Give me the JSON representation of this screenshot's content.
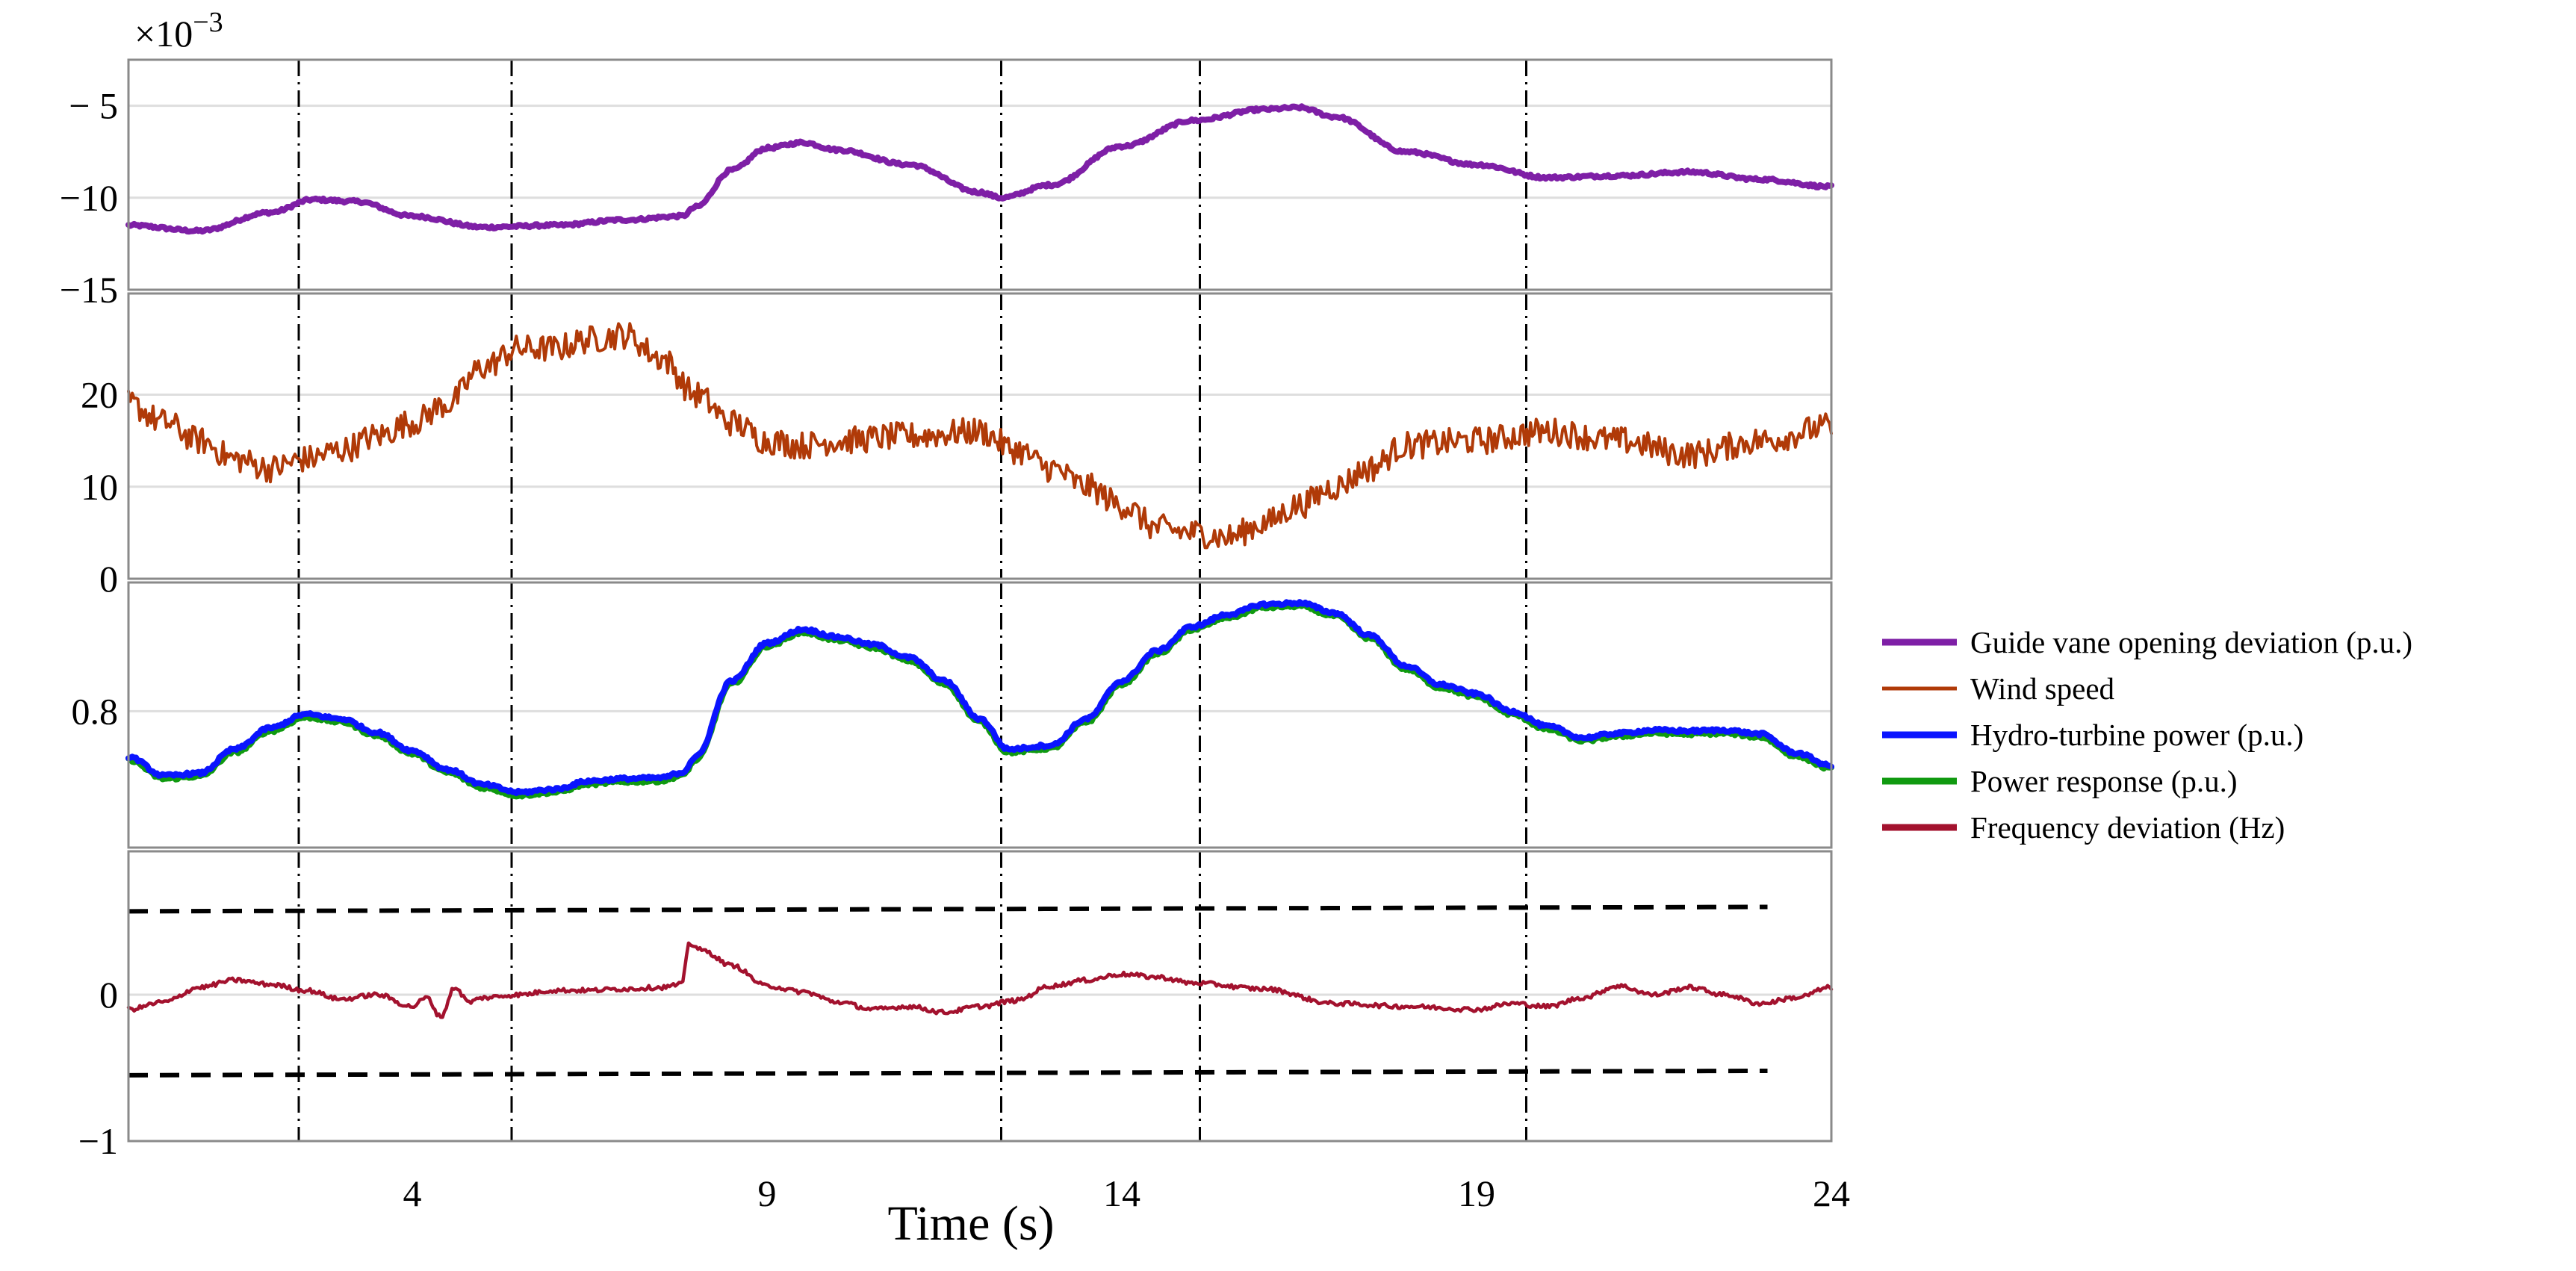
{
  "chart_data": {
    "type": "line",
    "xlabel": "Time (s)",
    "xlim": [
      0,
      24
    ],
    "x_ticks": [
      4,
      9,
      14,
      19,
      24
    ],
    "event_times": [
      2.4,
      5.4,
      12.3,
      15.1,
      19.7
    ],
    "colors": {
      "guide": "#7e1fa6",
      "wind": "#b03a08",
      "hydro": "#0a14ff",
      "power": "#109a10",
      "freq": "#a3122e"
    },
    "legend": [
      {
        "key": "guide",
        "label": "Guide vane opening deviation (p.u.)"
      },
      {
        "key": "wind",
        "label": "Wind speed"
      },
      {
        "key": "hydro",
        "label": "Hydro-turbine power (p.u.)"
      },
      {
        "key": "power",
        "label": "Power response (p.u.)"
      },
      {
        "key": "freq",
        "label": "Frequency deviation (Hz)"
      }
    ],
    "panels": [
      {
        "name": "guide-vane",
        "exponent_label": "×10",
        "exponent_power": "−3",
        "ylim": [
          -15,
          -2.5
        ],
        "y_ticks": [
          {
            "v": -5,
            "label": "− 5"
          },
          {
            "v": -10,
            "label": "−10"
          },
          {
            "v": -15,
            "label": "−15"
          }
        ],
        "series": [
          {
            "key": "guide",
            "noise": 0.08,
            "x": [
              0,
              1,
              2,
              2.6,
              3.2,
              4,
              5,
              6,
              7,
              7.8,
              8,
              8.5,
              9,
              9.5,
              10,
              11,
              12,
              12.3,
              13,
              14,
              15,
              16,
              16.5,
              17,
              18,
              19,
              20,
              21,
              22,
              23,
              24
            ],
            "y": [
              -11.5,
              -11.8,
              -10.8,
              -10.1,
              -10.2,
              -11,
              -11.6,
              -11.5,
              -11.2,
              -11,
              -10.5,
              -8.5,
              -7.3,
              -7,
              -7.4,
              -8.2,
              -9.7,
              -10,
              -9.3,
              -7.2,
              -5.8,
              -5.2,
              -5.1,
              -5.6,
              -7.5,
              -8.2,
              -8.9,
              -8.8,
              -8.6,
              -9.0,
              -9.4
            ]
          }
        ]
      },
      {
        "name": "wind-speed",
        "ylim": [
          0,
          31
        ],
        "y_ticks": [
          {
            "v": 20,
            "label": "20"
          },
          {
            "v": 10,
            "label": "10"
          },
          {
            "v": 0,
            "label": "0"
          }
        ],
        "series": [
          {
            "key": "wind",
            "noise": 1.5,
            "x": [
              0,
              0.5,
              1,
              1.5,
              2,
              2.5,
              3,
              3.5,
              4,
              4.5,
              5,
              5.5,
              6,
              6.5,
              7,
              7.5,
              8,
              8.5,
              9,
              9.5,
              10,
              11,
              12,
              12.5,
              13,
              13.5,
              14,
              14.5,
              15,
              15.5,
              16,
              16.5,
              17,
              17.5,
              18,
              19,
              20,
              21,
              22,
              23,
              24
            ],
            "y": [
              19,
              17,
              15,
              13,
              12,
              13,
              14,
              15.5,
              17,
              19,
              23,
              25,
              25,
              26,
              26.5,
              24,
              20,
              17,
              15,
              14.5,
              15,
              15.5,
              16,
              14,
              12,
              10,
              8,
              5.5,
              5,
              4.5,
              6,
              8,
              10,
              12,
              14.5,
              15,
              16,
              15,
              13.5,
              15,
              16.5
            ]
          }
        ]
      },
      {
        "name": "power",
        "ylim": [
          0.62,
          0.97
        ],
        "y_ticks": [
          {
            "v": 0.8,
            "label": "0.8"
          }
        ],
        "series": [
          {
            "key": "power",
            "noise": 0.002,
            "offset": -0.004,
            "x": [
              0,
              0.5,
              1,
              1.5,
              2,
              2.5,
              3,
              3.5,
              4,
              4.5,
              5,
              5.5,
              6,
              6.5,
              7,
              7.5,
              7.8,
              8,
              8.5,
              9,
              9.5,
              10,
              10.5,
              11,
              11.5,
              12,
              12.4,
              13,
              13.5,
              14,
              14.5,
              15,
              15.5,
              16,
              16.5,
              17,
              17.5,
              18,
              18.5,
              19,
              19.5,
              20,
              20.5,
              21,
              21.5,
              22,
              22.5,
              23,
              23.5,
              24
            ],
            "y": [
              0.74,
              0.715,
              0.718,
              0.75,
              0.778,
              0.796,
              0.79,
              0.772,
              0.748,
              0.723,
              0.703,
              0.693,
              0.697,
              0.708,
              0.711,
              0.712,
              0.719,
              0.74,
              0.84,
              0.89,
              0.908,
              0.898,
              0.888,
              0.871,
              0.84,
              0.79,
              0.75,
              0.755,
              0.79,
              0.84,
              0.88,
              0.912,
              0.928,
              0.941,
              0.943,
              0.93,
              0.9,
              0.86,
              0.835,
              0.823,
              0.8,
              0.78,
              0.765,
              0.771,
              0.775,
              0.774,
              0.775,
              0.77,
              0.745,
              0.728
            ]
          },
          {
            "key": "hydro",
            "noise": 0.002,
            "offset": 0.0,
            "x": [
              0,
              0.5,
              1,
              1.5,
              2,
              2.5,
              3,
              3.5,
              4,
              4.5,
              5,
              5.5,
              6,
              6.5,
              7,
              7.5,
              7.8,
              8,
              8.5,
              9,
              9.5,
              10,
              10.5,
              11,
              11.5,
              12,
              12.4,
              13,
              13.5,
              14,
              14.5,
              15,
              15.5,
              16,
              16.5,
              17,
              17.5,
              18,
              18.5,
              19,
              19.5,
              20,
              20.5,
              21,
              21.5,
              22,
              22.5,
              23,
              23.5,
              24
            ],
            "y": [
              0.74,
              0.715,
              0.718,
              0.75,
              0.778,
              0.796,
              0.79,
              0.772,
              0.748,
              0.723,
              0.703,
              0.693,
              0.697,
              0.708,
              0.711,
              0.712,
              0.719,
              0.74,
              0.84,
              0.89,
              0.908,
              0.898,
              0.888,
              0.871,
              0.84,
              0.79,
              0.75,
              0.755,
              0.79,
              0.84,
              0.88,
              0.912,
              0.928,
              0.941,
              0.943,
              0.93,
              0.9,
              0.86,
              0.835,
              0.823,
              0.8,
              0.78,
              0.765,
              0.771,
              0.775,
              0.774,
              0.775,
              0.77,
              0.745,
              0.728
            ]
          }
        ]
      },
      {
        "name": "frequency",
        "ylim": [
          -1,
          0.98
        ],
        "y_ticks": [
          {
            "v": 0,
            "label": "0"
          },
          {
            "v": -1,
            "label": "−1"
          }
        ],
        "limit_lines": [
          {
            "x0": 0,
            "x1": 23.1,
            "y0": 0.57,
            "y1": 0.6
          },
          {
            "x0": 0,
            "x1": 23.1,
            "y0": -0.55,
            "y1": -0.52
          }
        ],
        "series": [
          {
            "key": "freq",
            "noise": 0.015,
            "x": [
              0,
              0.5,
              1,
              1.5,
              2,
              2.5,
              3,
              3.5,
              4,
              4.2,
              4.4,
              4.6,
              4.8,
              5,
              5.5,
              6,
              6.5,
              7,
              7.5,
              7.8,
              7.9,
              8.1,
              8.5,
              9,
              9.5,
              10,
              10.5,
              11,
              11.5,
              12,
              12.5,
              13,
              13.5,
              14,
              14.5,
              15,
              16,
              17,
              18,
              19,
              19.5,
              20,
              20.5,
              21,
              21.5,
              22,
              22.5,
              23,
              23.5,
              24
            ],
            "y": [
              -0.1,
              -0.05,
              0.05,
              0.1,
              0.07,
              0.03,
              -0.03,
              0.0,
              -0.08,
              -0.02,
              -0.15,
              0.05,
              -0.05,
              -0.02,
              0.0,
              0.03,
              0.03,
              0.04,
              0.05,
              0.07,
              0.35,
              0.3,
              0.2,
              0.06,
              0.02,
              -0.05,
              -0.1,
              -0.08,
              -0.12,
              -0.08,
              -0.04,
              0.06,
              0.1,
              0.14,
              0.12,
              0.08,
              0.04,
              -0.06,
              -0.08,
              -0.1,
              -0.06,
              -0.08,
              -0.02,
              0.06,
              0.0,
              0.05,
              0.0,
              -0.06,
              -0.02,
              0.05
            ]
          }
        ]
      }
    ]
  }
}
